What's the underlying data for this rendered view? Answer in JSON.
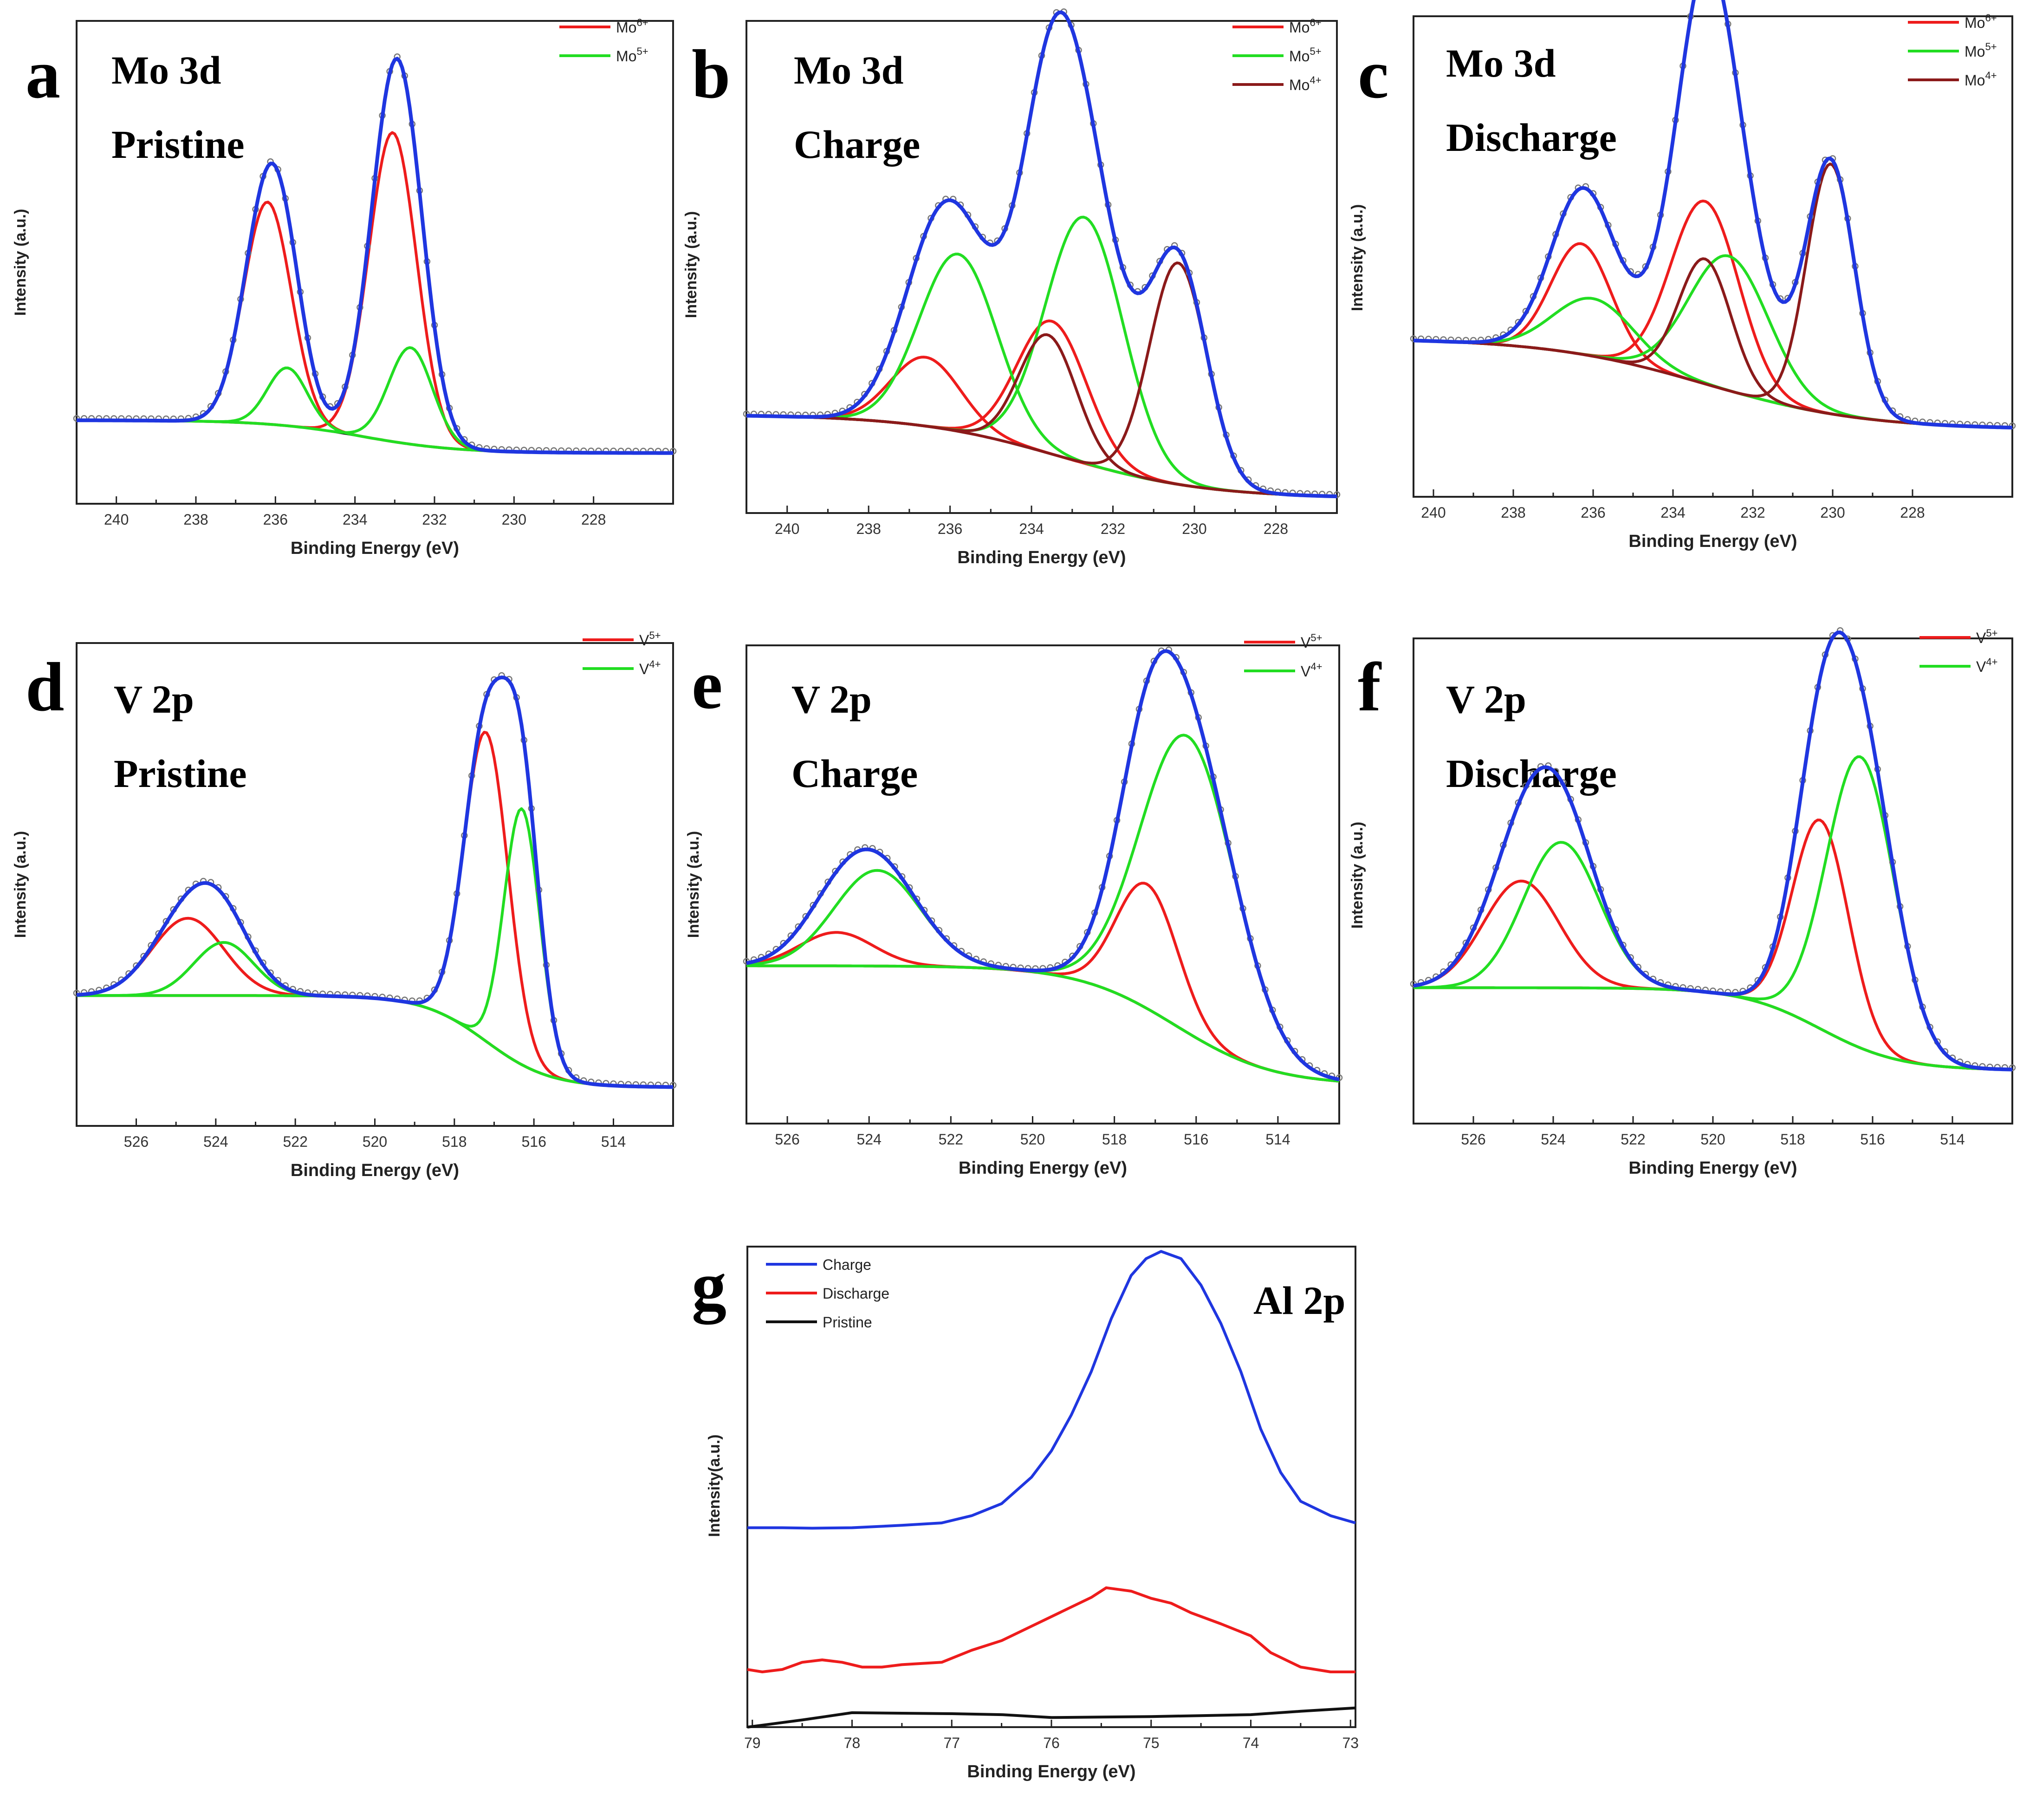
{
  "figure": {
    "charts": [
      {
        "id": "a",
        "letter": "a",
        "type": "line",
        "annotation_lines": [
          "Mo 3d",
          "Pristine"
        ],
        "xlabel": "Binding Energy (eV)",
        "ylabel": "Intensity (a.u.)",
        "xlim": [
          241,
          226
        ],
        "ylim": [
          0,
          1
        ],
        "xticks": [
          240,
          238,
          236,
          234,
          232,
          230,
          228
        ],
        "legend": [
          {
            "label": "Mo",
            "sup": "6+",
            "color": "#ee1c1c"
          },
          {
            "label": "Mo",
            "sup": "5+",
            "color": "#22dd22"
          }
        ],
        "background": {
          "left": 0.173,
          "right": 0.105,
          "center": 233.8,
          "width": 1.2
        },
        "peaks": [
          {
            "name": "Mo6+ 3d3/2",
            "center": 236.2,
            "amp": 0.46,
            "sigma": 0.6,
            "color": "#ee1c1c"
          },
          {
            "name": "Mo6+ 3d5/2",
            "center": 233.05,
            "amp": 0.64,
            "sigma": 0.6,
            "color": "#ee1c1c"
          },
          {
            "name": "Mo5+ 3d3/2",
            "center": 235.7,
            "amp": 0.12,
            "sigma": 0.5,
            "color": "#22dd22"
          },
          {
            "name": "Mo5+ 3d5/2",
            "center": 232.6,
            "amp": 0.2,
            "sigma": 0.55,
            "color": "#22dd22"
          }
        ],
        "envelope_color": "#1f36e0",
        "show_dots": true
      },
      {
        "id": "b",
        "letter": "b",
        "type": "line",
        "annotation_lines": [
          "Mo 3d",
          "Charge"
        ],
        "xlabel": "Binding Energy (eV)",
        "ylabel": "Intensity (a.u.)",
        "xlim": [
          241,
          226.5
        ],
        "ylim": [
          0,
          1
        ],
        "xticks": [
          240,
          238,
          236,
          234,
          232,
          230,
          228
        ],
        "legend": [
          {
            "label": "Mo",
            "sup": "6+",
            "color": "#ee1c1c"
          },
          {
            "label": "Mo",
            "sup": "5+",
            "color": "#22dd22"
          },
          {
            "label": "Mo",
            "sup": "4+",
            "color": "#8b1a1a"
          }
        ],
        "background": {
          "left": 0.2,
          "right": 0.03,
          "center": 233.3,
          "width": 1.8
        },
        "peaks": [
          {
            "name": "Mo6+ 3d3/2",
            "center": 236.6,
            "amp": 0.14,
            "sigma": 0.85,
            "color": "#ee1c1c"
          },
          {
            "name": "Mo6+ 3d5/2",
            "center": 233.5,
            "amp": 0.27,
            "sigma": 0.85,
            "color": "#ee1c1c"
          },
          {
            "name": "Mo5+ 3d3/2",
            "center": 235.8,
            "amp": 0.36,
            "sigma": 0.95,
            "color": "#22dd22"
          },
          {
            "name": "Mo5+ 3d5/2",
            "center": 232.7,
            "amp": 0.5,
            "sigma": 0.95,
            "color": "#22dd22"
          },
          {
            "name": "Mo4+ 3d3/2",
            "center": 233.6,
            "amp": 0.24,
            "sigma": 0.7,
            "color": "#8b1a1a"
          },
          {
            "name": "Mo4+ 3d5/2",
            "center": 230.4,
            "amp": 0.45,
            "sigma": 0.7,
            "color": "#8b1a1a"
          }
        ],
        "envelope_color": "#1f36e0",
        "show_dots": true
      },
      {
        "id": "c",
        "letter": "c",
        "type": "line",
        "annotation_lines": [
          "Mo 3d",
          "Discharge"
        ],
        "xlabel": "Binding Energy (eV)",
        "ylabel": "Intensity (a.u.)",
        "xlim": [
          240.5,
          225.5
        ],
        "ylim": [
          0,
          1
        ],
        "xticks": [
          240,
          238,
          236,
          234,
          232,
          230,
          228
        ],
        "legend": [
          {
            "label": "Mo",
            "sup": "6+",
            "color": "#ee1c1c"
          },
          {
            "label": "Mo",
            "sup": "5+",
            "color": "#22dd22"
          },
          {
            "label": "Mo",
            "sup": "4+",
            "color": "#8b1a1a"
          }
        ],
        "background": {
          "left": 0.33,
          "right": 0.14,
          "center": 233.2,
          "width": 2.0
        },
        "peaks": [
          {
            "name": "Mo6+ 3d3/2",
            "center": 236.3,
            "amp": 0.23,
            "sigma": 0.75,
            "color": "#ee1c1c"
          },
          {
            "name": "Mo6+ 3d5/2",
            "center": 233.2,
            "amp": 0.38,
            "sigma": 0.85,
            "color": "#ee1c1c"
          },
          {
            "name": "Mo5+ 3d3/2",
            "center": 236.0,
            "amp": 0.12,
            "sigma": 1.0,
            "color": "#22dd22"
          },
          {
            "name": "Mo5+ 3d5/2",
            "center": 232.6,
            "amp": 0.28,
            "sigma": 1.0,
            "color": "#22dd22"
          },
          {
            "name": "Mo4+ 3d3/2",
            "center": 233.2,
            "amp": 0.26,
            "sigma": 0.65,
            "color": "#8b1a1a"
          },
          {
            "name": "Mo4+ 3d5/2",
            "center": 230.05,
            "amp": 0.52,
            "sigma": 0.6,
            "color": "#8b1a1a"
          }
        ],
        "envelope_color": "#1f36e0",
        "show_dots": true
      },
      {
        "id": "d",
        "letter": "d",
        "type": "line",
        "annotation_lines": [
          "V 2p",
          "Pristine"
        ],
        "xlabel": "Binding Energy (eV)",
        "ylabel": "Intensity (a.u.)",
        "xlim": [
          527.5,
          512.5
        ],
        "ylim": [
          0,
          1
        ],
        "xticks": [
          526,
          524,
          522,
          520,
          518,
          516,
          514
        ],
        "legend": [
          {
            "label": "V",
            "sup": "5+",
            "color": "#ee1c1c"
          },
          {
            "label": "V",
            "sup": "4+",
            "color": "#22dd22"
          }
        ],
        "background": {
          "left": 0.27,
          "right": 0.08,
          "center": 517.2,
          "width": 0.8
        },
        "peaks": [
          {
            "name": "V5+ 2p1/2",
            "center": 524.7,
            "amp": 0.16,
            "sigma": 0.9,
            "color": "#ee1c1c"
          },
          {
            "name": "V5+ 2p3/2",
            "center": 517.2,
            "amp": 0.64,
            "sigma": 0.55,
            "color": "#ee1c1c"
          },
          {
            "name": "V4+ 2p1/2",
            "center": 523.8,
            "amp": 0.11,
            "sigma": 0.75,
            "color": "#22dd22"
          },
          {
            "name": "V4+ 2p3/2",
            "center": 516.3,
            "amp": 0.53,
            "sigma": 0.45,
            "color": "#22dd22"
          }
        ],
        "envelope_color": "#1f36e0",
        "show_dots": true
      },
      {
        "id": "e",
        "letter": "e",
        "type": "line",
        "annotation_lines": [
          "V 2p",
          "Charge"
        ],
        "xlabel": "Binding Energy (eV)",
        "ylabel": "Intensity (a.u.)",
        "xlim": [
          527,
          512.5
        ],
        "ylim": [
          0,
          1
        ],
        "xticks": [
          526,
          524,
          522,
          520,
          518,
          516,
          514
        ],
        "legend": [
          {
            "label": "V",
            "sup": "5+",
            "color": "#ee1c1c"
          },
          {
            "label": "V",
            "sup": "4+",
            "color": "#22dd22"
          }
        ],
        "background": {
          "left": 0.33,
          "right": 0.08,
          "center": 516.5,
          "width": 1.2
        },
        "peaks": [
          {
            "name": "V5+ 2p1/2",
            "center": 524.8,
            "amp": 0.07,
            "sigma": 0.9,
            "color": "#ee1c1c"
          },
          {
            "name": "V5+ 2p3/2",
            "center": 517.2,
            "amp": 0.26,
            "sigma": 0.75,
            "color": "#ee1c1c"
          },
          {
            "name": "V4+ 2p1/2",
            "center": 523.8,
            "amp": 0.2,
            "sigma": 1.05,
            "color": "#22dd22"
          },
          {
            "name": "V4+ 2p3/2",
            "center": 516.2,
            "amp": 0.62,
            "sigma": 1.15,
            "color": "#22dd22"
          }
        ],
        "envelope_color": "#1f36e0",
        "show_dots": true
      },
      {
        "id": "f",
        "letter": "f",
        "type": "line",
        "annotation_lines": [
          "V 2p",
          "Discharge"
        ],
        "xlabel": "Binding Energy (eV)",
        "ylabel": "Intensity (a.u.)",
        "xlim": [
          527.5,
          512.5
        ],
        "ylim": [
          0,
          1
        ],
        "xticks": [
          526,
          524,
          522,
          520,
          518,
          516,
          514
        ],
        "legend": [
          {
            "label": "V",
            "sup": "5+",
            "color": "#ee1c1c"
          },
          {
            "label": "V",
            "sup": "4+",
            "color": "#22dd22"
          }
        ],
        "background": {
          "left": 0.28,
          "right": 0.11,
          "center": 517.3,
          "width": 1.0
        },
        "peaks": [
          {
            "name": "V5+ 2p1/2",
            "center": 524.8,
            "amp": 0.22,
            "sigma": 0.95,
            "color": "#ee1c1c"
          },
          {
            "name": "V5+ 2p3/2",
            "center": 517.3,
            "amp": 0.43,
            "sigma": 0.7,
            "color": "#ee1c1c"
          },
          {
            "name": "V4+ 2p1/2",
            "center": 523.8,
            "amp": 0.3,
            "sigma": 0.95,
            "color": "#22dd22"
          },
          {
            "name": "V4+ 2p3/2",
            "center": 516.3,
            "amp": 0.6,
            "sigma": 0.85,
            "color": "#22dd22"
          }
        ],
        "envelope_color": "#1f36e0",
        "show_dots": true
      },
      {
        "id": "g",
        "letter": "g",
        "type": "line",
        "annotation_lines": [
          "Al 2p"
        ],
        "xlabel": "Binding Energy (eV)",
        "ylabel": "Intensity(a.u.)",
        "xlim": [
          79.05,
          72.95
        ],
        "ylim": [
          0,
          1
        ],
        "xticks": [
          79,
          78,
          77,
          76,
          75,
          74,
          73
        ],
        "legend": [
          {
            "label": "Charge",
            "sup": "",
            "color": "#1f36e0"
          },
          {
            "label": "Discharge",
            "sup": "",
            "color": "#ee1c1c"
          },
          {
            "label": "Pristine",
            "sup": "",
            "color": "#111111"
          }
        ],
        "series": [
          {
            "name": "Charge",
            "color": "#1f36e0",
            "x": [
              79.05,
              78.7,
              78.4,
              78.0,
              77.5,
              77.1,
              76.8,
              76.5,
              76.2,
              76.0,
              75.8,
              75.6,
              75.4,
              75.2,
              75.05,
              74.9,
              74.7,
              74.5,
              74.3,
              74.1,
              73.9,
              73.7,
              73.5,
              73.2,
              72.95
            ],
            "y": [
              0.415,
              0.415,
              0.414,
              0.415,
              0.42,
              0.425,
              0.44,
              0.465,
              0.52,
              0.575,
              0.65,
              0.74,
              0.85,
              0.94,
              0.975,
              0.99,
              0.975,
              0.92,
              0.84,
              0.74,
              0.62,
              0.53,
              0.47,
              0.44,
              0.425
            ]
          },
          {
            "name": "Discharge",
            "color": "#ee1c1c",
            "x": [
              79.05,
              78.9,
              78.7,
              78.5,
              78.3,
              78.1,
              77.9,
              77.7,
              77.5,
              77.1,
              76.8,
              76.5,
              76.2,
              75.9,
              75.6,
              75.45,
              75.2,
              75.0,
              74.8,
              74.6,
              74.3,
              74.0,
              73.8,
              73.5,
              73.2,
              72.95
            ],
            "y": [
              0.12,
              0.115,
              0.12,
              0.135,
              0.14,
              0.135,
              0.125,
              0.125,
              0.13,
              0.135,
              0.16,
              0.18,
              0.21,
              0.24,
              0.27,
              0.29,
              0.283,
              0.268,
              0.258,
              0.238,
              0.215,
              0.19,
              0.155,
              0.125,
              0.115,
              0.115
            ]
          },
          {
            "name": "Pristine",
            "color": "#111111",
            "x": [
              79.05,
              78.5,
              78.0,
              77.5,
              77.0,
              76.5,
              76.0,
              75.5,
              75.0,
              74.5,
              74.0,
              73.5,
              72.95
            ],
            "y": [
              0.0,
              0.015,
              0.03,
              0.029,
              0.028,
              0.026,
              0.02,
              0.021,
              0.022,
              0.024,
              0.026,
              0.033,
              0.04
            ]
          }
        ]
      }
    ]
  }
}
